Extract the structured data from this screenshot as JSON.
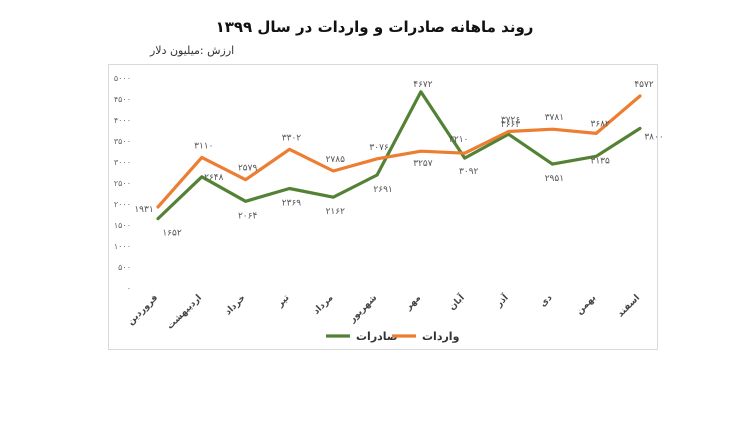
{
  "title": "روند ماهانه صادرات و واردات در سال ۱۳۹۹",
  "chart_data": {
    "type": "line",
    "title": "روند ماهانه صادرات و واردات در سال ۱۳۹۹",
    "ylabel": "ارزش :میلیون دلار",
    "xlabel": "",
    "ylim": [
      0,
      5000
    ],
    "yticks": [
      0,
      500,
      1000,
      1500,
      2000,
      2500,
      3000,
      3500,
      4000,
      4500,
      5000
    ],
    "ytick_labels": [
      "۰",
      "۵۰۰",
      "۱۰۰۰",
      "۱۵۰۰",
      "۲۰۰۰",
      "۲۵۰۰",
      "۳۰۰۰",
      "۳۵۰۰",
      "۴۰۰۰",
      "۴۵۰۰",
      "۵۰۰۰"
    ],
    "categories": [
      "فروردین",
      "اردیبهشت",
      "خرداد",
      "تیر",
      "مرداد",
      "شهریور",
      "مهر",
      "آبان",
      "آذر",
      "دی",
      "بهمن",
      "اسفند"
    ],
    "grid": false,
    "legend_position": "bottom",
    "series": [
      {
        "name": "صادرات",
        "color": "#548235",
        "values": [
          1652,
          2648,
          2064,
          2369,
          2162,
          2691,
          4672,
          3092,
          3663,
          2951,
          3135,
          3800
        ],
        "labels": [
          "۱۶۵۲",
          "۲۶۴۸",
          "۲۰۶۴",
          "۲۳۶۹",
          "۲۱۶۲",
          "۲۶۹۱",
          "۴۶۷۲",
          "۳۰۹۲",
          "۳۶۶۳",
          "۲۹۵۱",
          "۳۱۳۵",
          "۳۸۰۰"
        ]
      },
      {
        "name": "واردات",
        "color": "#ed7d31",
        "values": [
          1931,
          3110,
          2579,
          3302,
          2785,
          3076,
          3257,
          3210,
          3726,
          3781,
          3682,
          4572
        ],
        "labels": [
          "۱۹۳۱",
          "۳۱۱۰",
          "۲۵۷۹",
          "۳۳۰۲",
          "۲۷۸۵",
          "۳۰۷۶",
          "۳۲۵۷",
          "۳۲۱۰",
          "۳۷۲۶",
          "۳۷۸۱",
          "۳۶۸۲",
          "۴۵۷۲"
        ]
      }
    ]
  }
}
